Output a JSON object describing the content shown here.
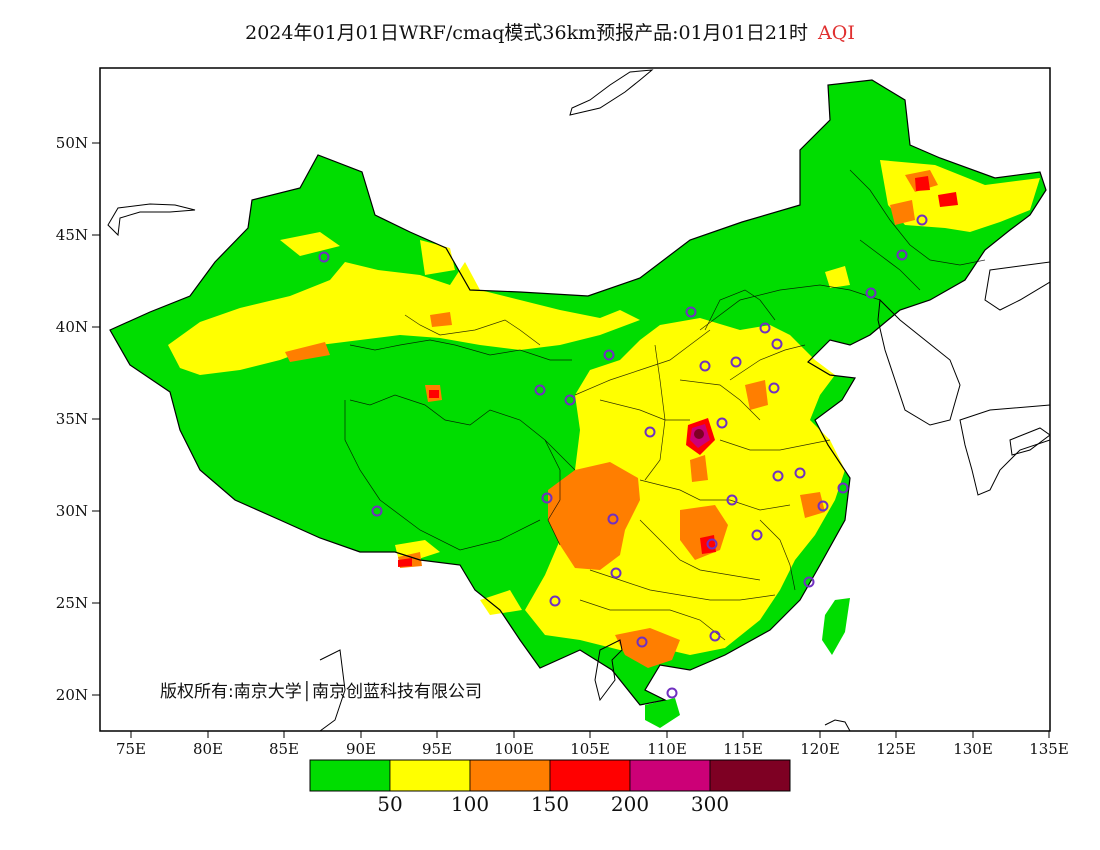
{
  "map": {
    "title": "2024年01月01日WRF/cmaq模式36km预报产品:01月01日21时",
    "variable": "AQI",
    "copyright": "版权所有:南京大学│南京创蓝科技有限公司",
    "lon_ticks": [
      "75E",
      "80E",
      "85E",
      "90E",
      "95E",
      "100E",
      "105E",
      "110E",
      "115E",
      "120E",
      "125E",
      "130E",
      "135E"
    ],
    "lat_ticks": [
      "20N",
      "25N",
      "30N",
      "35N",
      "40N",
      "45N",
      "50N"
    ],
    "legend": {
      "colors": [
        "#00dd00",
        "#ffff00",
        "#ff7e00",
        "#ff0000",
        "#cc0077",
        "#7e0023"
      ],
      "labels": [
        "50",
        "100",
        "150",
        "200",
        "300"
      ]
    },
    "colors": {
      "title_accent": "#e03030",
      "station_marker": "#7030c0",
      "ocean": "#ffffff",
      "boundary": "#000000"
    }
  }
}
